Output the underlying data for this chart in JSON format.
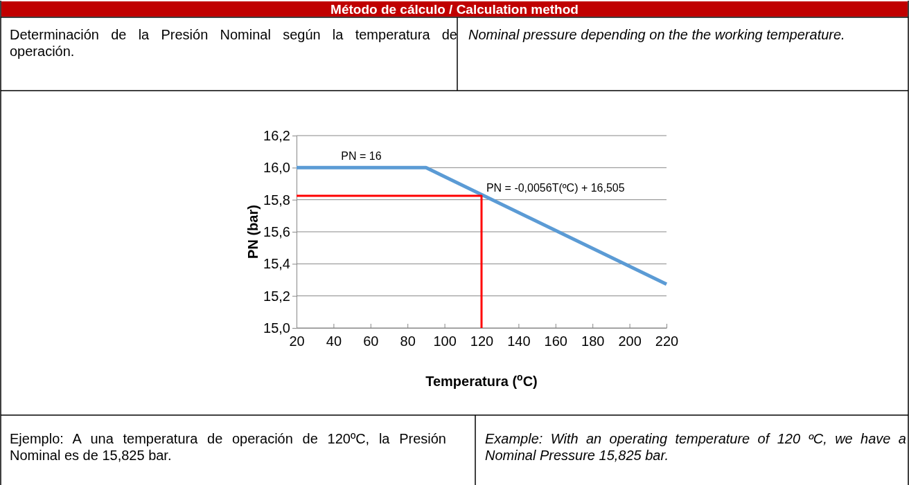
{
  "chart_data": {
    "type": "line",
    "title": "Método de cálculo / Calculation method",
    "xlabel": "Temperatura ($^{o}$C)",
    "ylabel": "PN (bar)",
    "xlim": [
      20,
      220
    ],
    "xticks": [
      20,
      40,
      60,
      80,
      100,
      120,
      140,
      160,
      180,
      200,
      220
    ],
    "ylim": [
      15.0,
      16.2
    ],
    "yticks": [
      {
        "value": 15.0,
        "label": "15,0"
      },
      {
        "value": 15.2,
        "label": "15,2"
      },
      {
        "value": 15.4,
        "label": "15,4"
      },
      {
        "value": 15.6,
        "label": "15,6"
      },
      {
        "value": 15.8,
        "label": "15,8"
      },
      {
        "value": 16.0,
        "label": "16,0"
      },
      {
        "value": 16.2,
        "label": "16,2"
      }
    ],
    "grid": "y",
    "marker": "none",
    "line_style": "solid",
    "series": [
      {
        "color": "#5b9bd5",
        "x": [
          20,
          90,
          220
        ],
        "values": [
          16.0,
          16.0,
          15.273
        ]
      },
      {
        "color": "#ff0000",
        "x": [
          20,
          120,
          120
        ],
        "values": [
          15.825,
          15.825,
          15.0
        ]
      }
    ],
    "annotations": [
      "Determinación de la Presión Nominal según la temperatura de operación.",
      "Nominal pressure depending on the the working temperature.",
      "PN = 16",
      "PN = -0,0056T(ºC) + 16,505",
      "Ejemplo: A una temperatura de operación de 120ºC, la Presión Nominal es de 15,825 bar.",
      "Example: With an operating temperature of 120 ºC, we have a Nominal Pressure 15,825 bar."
    ]
  }
}
